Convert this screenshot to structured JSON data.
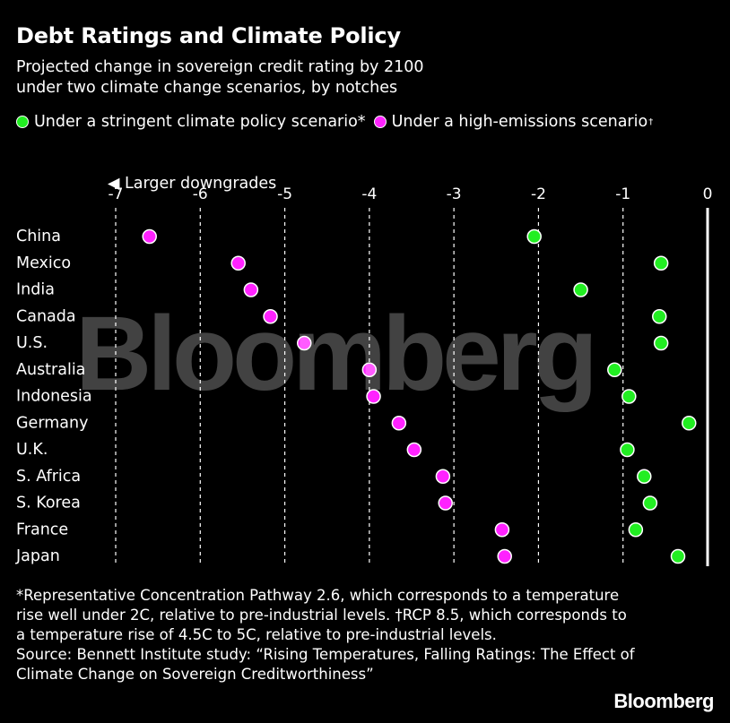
{
  "header": {
    "title": "Debt Ratings and Climate Policy",
    "subtitle_line1": "Projected change in sovereign credit rating by 2100",
    "subtitle_line2": "under two climate change scenarios, by notches"
  },
  "legend": {
    "stringent_label": "Under a stringent climate policy scenario*",
    "high_label": "Under a high-emissions scenario",
    "high_mark": "†"
  },
  "colors": {
    "background": "#000000",
    "stringent": "#22ee22",
    "high_emissions": "#ff22ff",
    "text": "#ffffff"
  },
  "chart_data": {
    "type": "scatter",
    "title": "Debt Ratings and Climate Policy",
    "xlabel": "◀ Larger downgrades",
    "xlim": [
      -7,
      0
    ],
    "x_ticks": [
      -7,
      -6,
      -5,
      -4,
      -3,
      -2,
      -1,
      0
    ],
    "categories": [
      "China",
      "Mexico",
      "India",
      "Canada",
      "U.S.",
      "Australia",
      "Indonesia",
      "Germany",
      "U.K.",
      "S. Africa",
      "S. Korea",
      "France",
      "Japan"
    ],
    "series": [
      {
        "name": "Under a stringent climate policy scenario*",
        "color": "#22ee22",
        "values": [
          -2.05,
          -0.55,
          -1.5,
          -0.57,
          -0.55,
          -1.1,
          -0.93,
          -0.22,
          -0.95,
          -0.75,
          -0.68,
          -0.85,
          -0.35
        ]
      },
      {
        "name": "Under a high-emissions scenario†",
        "color": "#ff22ff",
        "values": [
          -6.6,
          -5.55,
          -5.4,
          -5.17,
          -4.77,
          -4.0,
          -3.95,
          -3.65,
          -3.47,
          -3.13,
          -3.1,
          -2.43,
          -2.4
        ]
      }
    ]
  },
  "footnote": {
    "line1": "*Representative Concentration Pathway 2.6, which corresponds to a temperature",
    "line2": "rise well under 2C, relative to pre-industrial levels. †RCP 8.5, which corresponds to",
    "line3": "a temperature rise of 4.5C to 5C, relative to pre-industrial levels.",
    "line4": "Source: Bennett Institute study: “Rising Temperatures, Falling Ratings: The Effect of",
    "line5": "Climate Change on Sovereign Creditworthiness”"
  },
  "brand": "Bloomberg",
  "watermark": "Bloomberg"
}
